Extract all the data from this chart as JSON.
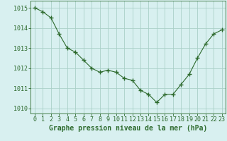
{
  "x": [
    0,
    1,
    2,
    3,
    4,
    5,
    6,
    7,
    8,
    9,
    10,
    11,
    12,
    13,
    14,
    15,
    16,
    17,
    18,
    19,
    20,
    21,
    22,
    23
  ],
  "y": [
    1015.0,
    1014.8,
    1014.5,
    1013.7,
    1013.0,
    1012.8,
    1012.4,
    1012.0,
    1011.8,
    1011.9,
    1011.8,
    1011.5,
    1011.4,
    1010.9,
    1010.7,
    1010.3,
    1010.7,
    1010.7,
    1011.2,
    1011.7,
    1012.5,
    1013.2,
    1013.7,
    1013.9
  ],
  "line_color": "#2d6a2d",
  "marker": "+",
  "bg_color": "#d8f0f0",
  "grid_color": "#aad0c8",
  "ylabel_ticks": [
    1010,
    1011,
    1012,
    1013,
    1014,
    1015
  ],
  "xlabel_ticks": [
    0,
    1,
    2,
    3,
    4,
    5,
    6,
    7,
    8,
    9,
    10,
    11,
    12,
    13,
    14,
    15,
    16,
    17,
    18,
    19,
    20,
    21,
    22,
    23
  ],
  "ylim": [
    1009.75,
    1015.35
  ],
  "xlim": [
    -0.5,
    23.5
  ],
  "xlabel": "Graphe pression niveau de la mer (hPa)",
  "axis_color": "#2d6a2d",
  "tick_color": "#2d6a2d",
  "label_fontsize": 7,
  "tick_fontsize": 6
}
